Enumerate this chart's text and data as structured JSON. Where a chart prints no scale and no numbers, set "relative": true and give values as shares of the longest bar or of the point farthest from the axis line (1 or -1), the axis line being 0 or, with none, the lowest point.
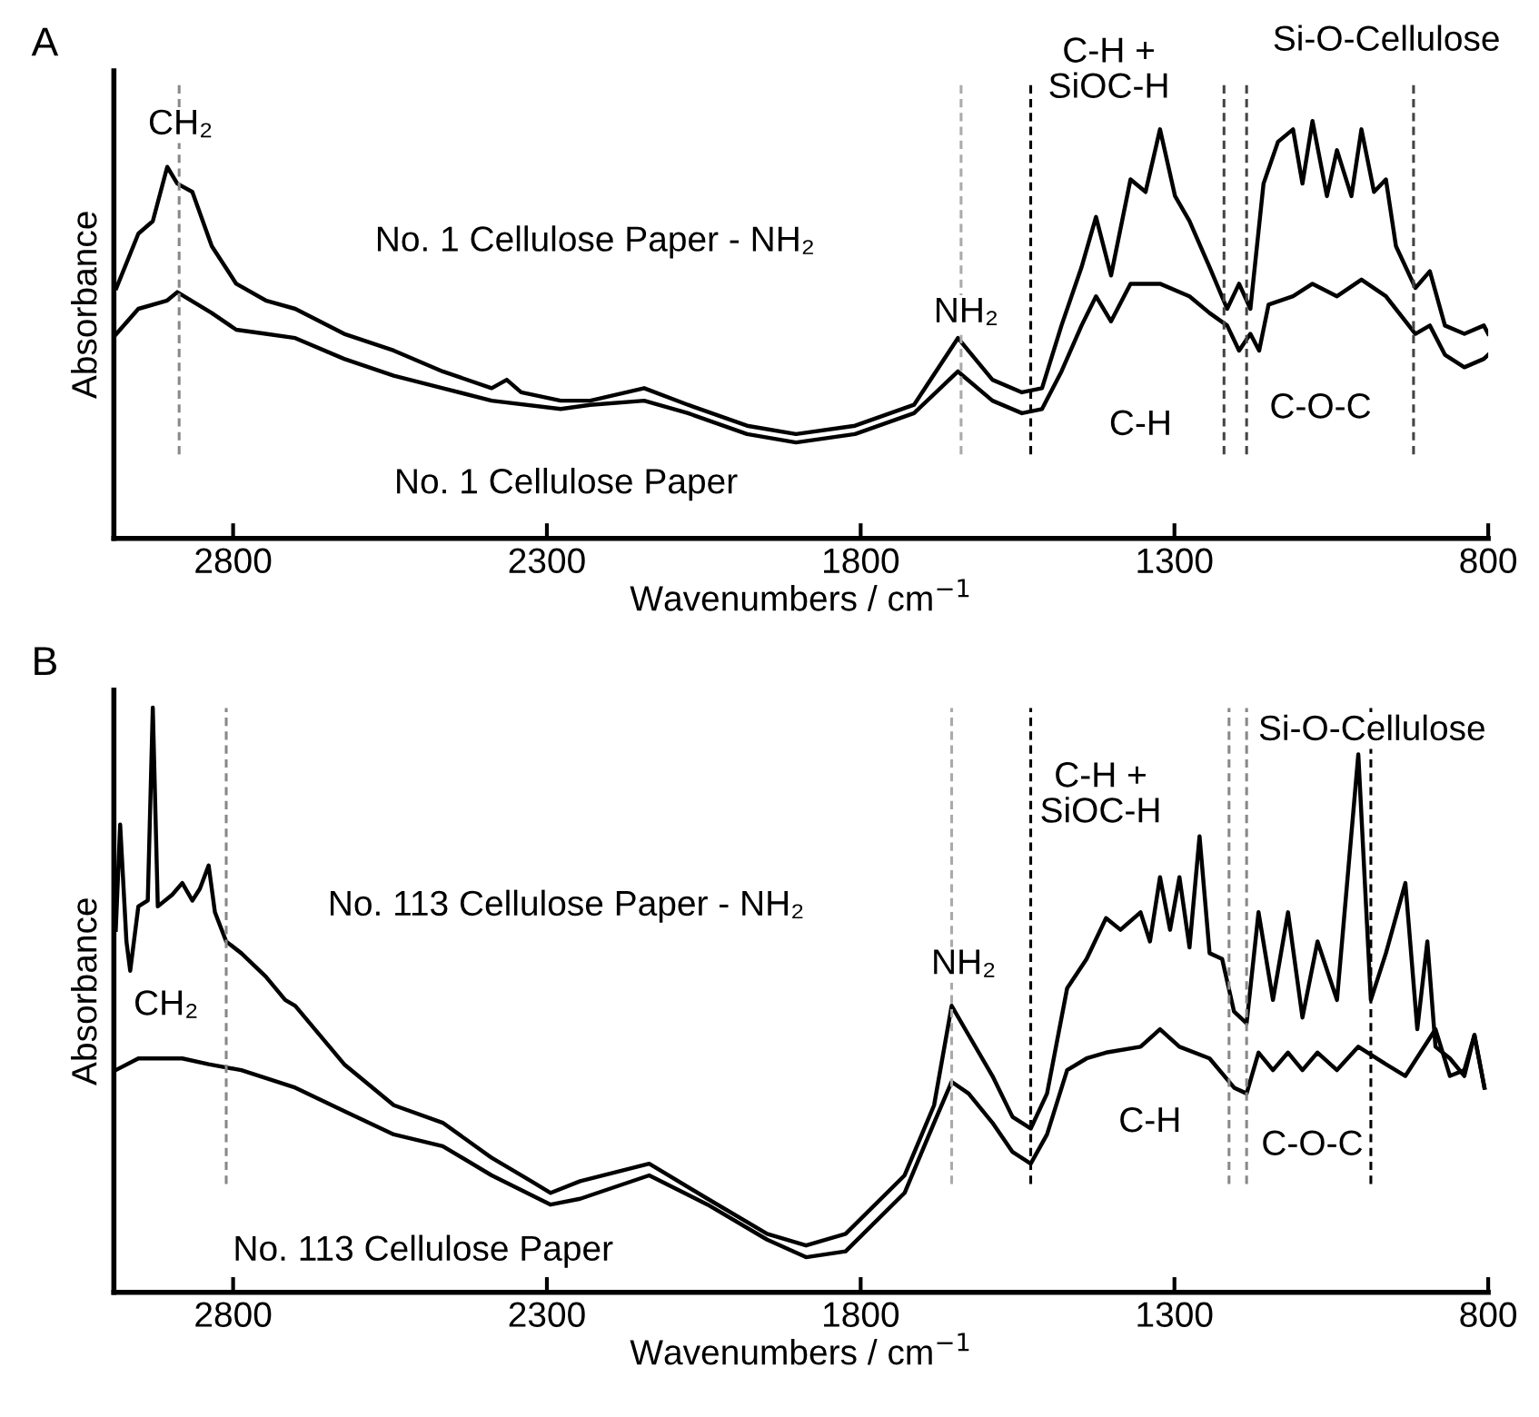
{
  "chart_data": [
    {
      "type": "line",
      "title": "A",
      "xlabel": "Wavenumbers / cm$^{−1}$",
      "ylabel": "Absorbance",
      "relative": true,
      "tick_labels": "x",
      "grid": false,
      "xlim": [
        2990,
        800
      ],
      "xticks": [
        2800,
        2300,
        1800,
        1300,
        800
      ],
      "series": [
        {
          "color": "#000000",
          "x": [
            2986,
            2951,
            2928,
            2905,
            2889,
            2865,
            2834,
            2795,
            2748,
            2701,
            2623,
            2544,
            2466,
            2388,
            2364,
            2341,
            2278,
            2231,
            2145,
            2075,
            1981,
            1903,
            1809,
            1715,
            1645,
            1590,
            1543,
            1511,
            1480,
            1448,
            1425,
            1401,
            1370,
            1346,
            1323,
            1299,
            1276,
            1244,
            1216,
            1197,
            1179,
            1158,
            1135,
            1111,
            1096,
            1080,
            1057,
            1041,
            1018,
            1002,
            982,
            963,
            947,
            916,
            893,
            869,
            838,
            807,
            800
          ],
          "values": [
            0.6,
            0.73,
            0.76,
            0.89,
            0.85,
            0.83,
            0.7,
            0.61,
            0.57,
            0.55,
            0.49,
            0.45,
            0.4,
            0.36,
            0.38,
            0.35,
            0.33,
            0.33,
            0.36,
            0.32,
            0.27,
            0.25,
            0.27,
            0.32,
            0.48,
            0.38,
            0.35,
            0.36,
            0.51,
            0.65,
            0.77,
            0.63,
            0.86,
            0.83,
            0.98,
            0.82,
            0.76,
            0.65,
            0.55,
            0.61,
            0.55,
            0.85,
            0.95,
            0.98,
            0.85,
            1.0,
            0.82,
            0.93,
            0.82,
            0.98,
            0.83,
            0.86,
            0.7,
            0.6,
            0.64,
            0.51,
            0.49,
            0.51,
            0.49
          ]
        },
        {
          "color": "#000000",
          "x": [
            2986,
            2951,
            2905,
            2889,
            2834,
            2795,
            2748,
            2701,
            2623,
            2544,
            2466,
            2388,
            2278,
            2231,
            2145,
            2075,
            1981,
            1903,
            1809,
            1715,
            1645,
            1590,
            1543,
            1511,
            1480,
            1448,
            1425,
            1401,
            1370,
            1323,
            1276,
            1244,
            1216,
            1197,
            1179,
            1165,
            1150,
            1111,
            1080,
            1041,
            1002,
            963,
            916,
            893,
            869,
            838,
            807,
            800
          ],
          "values": [
            0.49,
            0.55,
            0.57,
            0.59,
            0.54,
            0.5,
            0.49,
            0.48,
            0.43,
            0.39,
            0.36,
            0.33,
            0.31,
            0.32,
            0.33,
            0.3,
            0.25,
            0.23,
            0.25,
            0.3,
            0.4,
            0.33,
            0.3,
            0.31,
            0.4,
            0.51,
            0.58,
            0.52,
            0.61,
            0.61,
            0.58,
            0.54,
            0.51,
            0.45,
            0.49,
            0.45,
            0.56,
            0.58,
            0.61,
            0.58,
            0.62,
            0.58,
            0.49,
            0.51,
            0.44,
            0.41,
            0.43,
            0.44
          ]
        }
      ],
      "ref_lines": [
        {
          "axis": "x",
          "value": 2886,
          "color": "#888888",
          "line_style": "dashed"
        },
        {
          "axis": "x",
          "value": 1640,
          "color": "#aaaaaa",
          "line_style": "dashed"
        },
        {
          "axis": "x",
          "value": 1529,
          "color": "#000000",
          "line_style": "dashed"
        },
        {
          "axis": "x",
          "value": 1221,
          "color": "#444444",
          "line_style": "dashed"
        },
        {
          "axis": "x",
          "value": 1185,
          "color": "#444444",
          "line_style": "dashed"
        },
        {
          "axis": "x",
          "value": 919,
          "color": "#444444",
          "line_style": "dashed"
        }
      ],
      "annotations": [
        {
          "text": "CH₂",
          "x": 2884,
          "y": 0.99
        },
        "No. 1 Cellulose Paper - NH₂",
        {
          "text": "NH₂",
          "x": 1632,
          "y": 0.54
        },
        "C-H +\nSiOC-H",
        "Si-O-Cellulose",
        {
          "text": "C-H",
          "x": 1354,
          "y": 0.27
        },
        "C-O-C",
        "No. 1 Cellulose Paper"
      ]
    },
    {
      "type": "line",
      "title": "B",
      "xlabel": "Wavenumbers / cm$^{−1}$",
      "ylabel": "Absorbance",
      "relative": true,
      "tick_labels": "x",
      "grid": false,
      "xlim": [
        2990,
        800
      ],
      "xticks": [
        2800,
        2300,
        1800,
        1300,
        800
      ],
      "series": [
        {
          "color": "#000000",
          "x": [
            2987,
            2980,
            2970,
            2964,
            2951,
            2936,
            2928,
            2920,
            2897,
            2881,
            2865,
            2853,
            2839,
            2829,
            2811,
            2787,
            2748,
            2717,
            2701,
            2623,
            2544,
            2466,
            2388,
            2325,
            2294,
            2247,
            2137,
            2044,
            1949,
            1887,
            1824,
            1730,
            1683,
            1655,
            1628,
            1590,
            1558,
            1529,
            1503,
            1471,
            1440,
            1409,
            1386,
            1354,
            1339,
            1323,
            1307,
            1292,
            1276,
            1260,
            1244,
            1224,
            1205,
            1185,
            1166,
            1143,
            1119,
            1096,
            1072,
            1041,
            1007,
            987,
            963,
            932,
            913,
            897,
            884,
            861,
            838,
            822,
            806
          ],
          "values": [
            0.62,
            0.8,
            0.6,
            0.55,
            0.66,
            0.67,
            1.0,
            0.66,
            0.68,
            0.7,
            0.67,
            0.69,
            0.73,
            0.65,
            0.6,
            0.58,
            0.54,
            0.5,
            0.49,
            0.39,
            0.32,
            0.29,
            0.23,
            0.19,
            0.17,
            0.19,
            0.22,
            0.16,
            0.1,
            0.08,
            0.1,
            0.2,
            0.32,
            0.49,
            0.44,
            0.37,
            0.3,
            0.28,
            0.34,
            0.52,
            0.57,
            0.64,
            0.62,
            0.65,
            0.6,
            0.71,
            0.62,
            0.71,
            0.59,
            0.78,
            0.58,
            0.57,
            0.48,
            0.46,
            0.65,
            0.5,
            0.65,
            0.47,
            0.6,
            0.5,
            0.92,
            0.5,
            0.58,
            0.7,
            0.45,
            0.6,
            0.42,
            0.4,
            0.37,
            0.44,
            0.35
          ]
        },
        {
          "color": "#000000",
          "x": [
            2987,
            2951,
            2881,
            2839,
            2787,
            2701,
            2623,
            2544,
            2466,
            2388,
            2294,
            2247,
            2137,
            2044,
            1949,
            1887,
            1824,
            1730,
            1683,
            1655,
            1628,
            1590,
            1558,
            1529,
            1503,
            1471,
            1440,
            1409,
            1354,
            1323,
            1292,
            1244,
            1205,
            1185,
            1166,
            1143,
            1119,
            1096,
            1072,
            1041,
            1007,
            963,
            932,
            884,
            861,
            838,
            822,
            806
          ],
          "values": [
            0.38,
            0.4,
            0.4,
            0.39,
            0.38,
            0.35,
            0.31,
            0.27,
            0.25,
            0.2,
            0.15,
            0.16,
            0.2,
            0.15,
            0.09,
            0.06,
            0.07,
            0.17,
            0.29,
            0.36,
            0.34,
            0.29,
            0.24,
            0.22,
            0.27,
            0.38,
            0.4,
            0.41,
            0.42,
            0.45,
            0.42,
            0.4,
            0.35,
            0.34,
            0.41,
            0.38,
            0.41,
            0.38,
            0.41,
            0.38,
            0.42,
            0.39,
            0.37,
            0.45,
            0.37,
            0.38,
            0.44,
            0.35
          ]
        }
      ],
      "ref_lines": [
        {
          "axis": "x",
          "value": 2811,
          "color": "#888888",
          "line_style": "dashed"
        },
        {
          "axis": "x",
          "value": 1655,
          "color": "#aaaaaa",
          "line_style": "dashed"
        },
        {
          "axis": "x",
          "value": 1529,
          "color": "#000000",
          "line_style": "dashed"
        },
        {
          "axis": "x",
          "value": 1213,
          "color": "#888888",
          "line_style": "dashed"
        },
        {
          "axis": "x",
          "value": 1185,
          "color": "#888888",
          "line_style": "dashed"
        },
        {
          "axis": "x",
          "value": 987,
          "color": "#000000",
          "line_style": "dashed"
        }
      ],
      "annotations": [
        {
          "text": "CH₂",
          "x": 2907,
          "y": 0.49
        },
        "No. 113 Cellulose Paper - NH₂",
        {
          "text": "NH₂",
          "x": 1636,
          "y": 0.56
        },
        "C-H +\nSiOC-H",
        {
          "text": "Si-O-Cellulose",
          "x": 985,
          "y": 0.96
        },
        {
          "text": "C-H",
          "x": 1339,
          "y": 0.29
        },
        "C-O-C",
        "No. 113 Cellulose Paper"
      ]
    }
  ]
}
